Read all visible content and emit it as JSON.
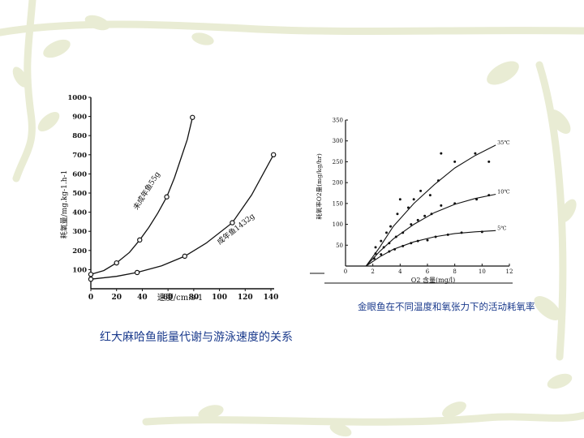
{
  "captions": {
    "left": "红大麻哈鱼能量代谢与游泳速度的关系",
    "right": "金眼鱼在不同温度和氧张力下的活动耗氧率"
  },
  "colors": {
    "caption_text": "#1a3a8c",
    "decoration_vine": "#e9ecd4",
    "axis": "#111111",
    "background": "#ffffff"
  },
  "chart_data": [
    {
      "type": "line",
      "ylabel": "耗氧量/mg.kg-1.h-1",
      "xlabel": "速度/cm.s-1",
      "xlim": [
        0,
        140
      ],
      "ylim": [
        0,
        1000
      ],
      "x_ticks": [
        "0",
        "20",
        "40",
        "60",
        "80",
        "100",
        "120",
        "140"
      ],
      "y_ticks": [
        "100",
        "200",
        "300",
        "400",
        "500",
        "600",
        "700",
        "800",
        "900",
        "1000"
      ],
      "series": [
        {
          "name": "未成年鱼55g",
          "points": [
            [
              0,
              75
            ],
            [
              20,
              135
            ],
            [
              38,
              255
            ],
            [
              59,
              480
            ],
            [
              79,
              895
            ]
          ],
          "curve": [
            [
              0,
              75
            ],
            [
              10,
              95
            ],
            [
              20,
              135
            ],
            [
              30,
              190
            ],
            [
              38,
              255
            ],
            [
              45,
              320
            ],
            [
              52,
              395
            ],
            [
              59,
              480
            ],
            [
              65,
              580
            ],
            [
              70,
              680
            ],
            [
              75,
              780
            ],
            [
              79,
              895
            ]
          ]
        },
        {
          "name": "成年鱼1432g",
          "points": [
            [
              0,
              50
            ],
            [
              36,
              85
            ],
            [
              73,
              170
            ],
            [
              110,
              345
            ],
            [
              142,
              700
            ]
          ],
          "curve": [
            [
              0,
              50
            ],
            [
              20,
              65
            ],
            [
              36,
              85
            ],
            [
              55,
              120
            ],
            [
              73,
              170
            ],
            [
              90,
              240
            ],
            [
              110,
              345
            ],
            [
              125,
              490
            ],
            [
              142,
              700
            ]
          ]
        }
      ]
    },
    {
      "type": "scatter",
      "ylabel": "耗氧率O2量(mg/kg/hr)",
      "xlabel": "O2 含量(mg/l)",
      "xlim": [
        0,
        12
      ],
      "ylim": [
        0,
        350
      ],
      "x_ticks": [
        "0",
        "2",
        "4",
        "6",
        "8",
        "10",
        "12"
      ],
      "y_ticks": [
        "50",
        "100",
        "150",
        "200",
        "250",
        "300",
        "350"
      ],
      "series": [
        {
          "name": "35℃",
          "curve": [
            [
              1.5,
              0
            ],
            [
              2.5,
              45
            ],
            [
              3.5,
              95
            ],
            [
              5,
              150
            ],
            [
              6.5,
              195
            ],
            [
              8,
              235
            ],
            [
              9.5,
              265
            ],
            [
              11,
              290
            ]
          ],
          "points": [
            [
              2.2,
              45
            ],
            [
              2.6,
              60
            ],
            [
              3,
              80
            ],
            [
              3.3,
              95
            ],
            [
              3.8,
              125
            ],
            [
              4,
              160
            ],
            [
              4.6,
              140
            ],
            [
              5,
              160
            ],
            [
              5.5,
              180
            ],
            [
              6.2,
              170
            ],
            [
              6.8,
              205
            ],
            [
              7,
              270
            ],
            [
              8,
              250
            ],
            [
              9.5,
              270
            ],
            [
              10.5,
              250
            ]
          ]
        },
        {
          "name": "10℃",
          "curve": [
            [
              1.5,
              0
            ],
            [
              2.5,
              35
            ],
            [
              3.5,
              65
            ],
            [
              5,
              100
            ],
            [
              6.5,
              128
            ],
            [
              8,
              148
            ],
            [
              9.5,
              162
            ],
            [
              11,
              172
            ]
          ],
          "points": [
            [
              2.2,
              30
            ],
            [
              2.8,
              45
            ],
            [
              3.2,
              55
            ],
            [
              3.7,
              70
            ],
            [
              4.2,
              80
            ],
            [
              4.8,
              100
            ],
            [
              5.3,
              110
            ],
            [
              5.8,
              120
            ],
            [
              6.3,
              125
            ],
            [
              7,
              145
            ],
            [
              8,
              150
            ],
            [
              9.6,
              160
            ],
            [
              10.5,
              170
            ]
          ]
        },
        {
          "name": "5℃",
          "curve": [
            [
              1.5,
              0
            ],
            [
              2.5,
              22
            ],
            [
              3.5,
              40
            ],
            [
              5,
              58
            ],
            [
              6.5,
              70
            ],
            [
              8,
              78
            ],
            [
              9.5,
              82
            ],
            [
              11,
              85
            ]
          ],
          "points": [
            [
              2.1,
              18
            ],
            [
              2.6,
              28
            ],
            [
              3.2,
              35
            ],
            [
              3.6,
              40
            ],
            [
              4.2,
              48
            ],
            [
              4.8,
              55
            ],
            [
              5.3,
              60
            ],
            [
              6,
              62
            ],
            [
              6.6,
              70
            ],
            [
              7.5,
              75
            ],
            [
              8.5,
              80
            ],
            [
              10,
              82
            ]
          ]
        }
      ]
    }
  ]
}
